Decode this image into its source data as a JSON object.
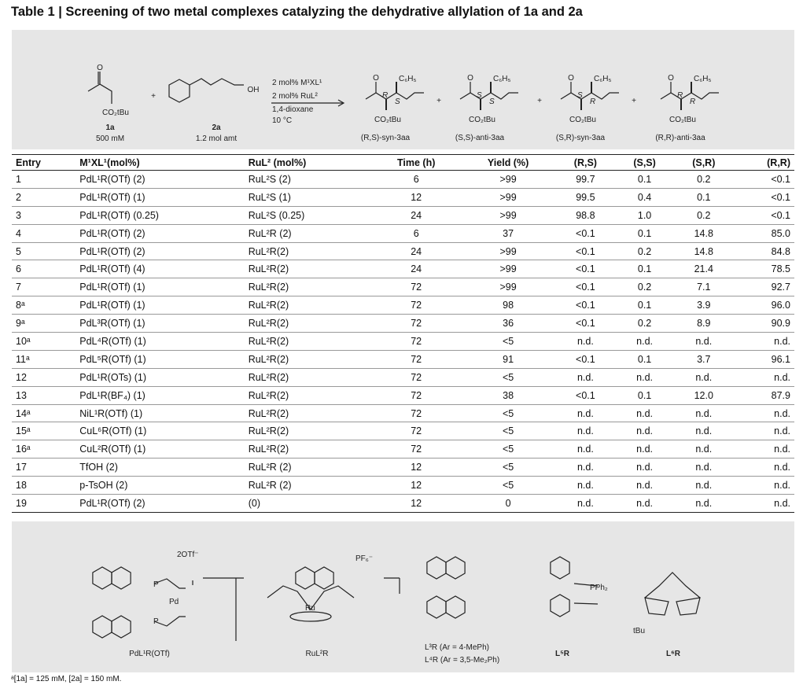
{
  "title": "Table 1 | Screening of two metal complexes catalyzing the dehydrative allylation of 1a and 2a",
  "scheme": {
    "reactants": [
      {
        "label": "1a",
        "amount": "500 mM",
        "group": "CO₂tBu"
      },
      {
        "label": "2a",
        "amount": "1.2 mol amt",
        "group": "OH"
      }
    ],
    "plus": "+",
    "conditions": [
      "2 mol% M¹XL¹",
      "2 mol% RuL²",
      "1,4-dioxane",
      "10 °C"
    ],
    "products": [
      {
        "label": "(R,S)-syn-3aa",
        "top": "C₆H₅",
        "bottom": "CO₂tBu",
        "stereo": [
          "R",
          "S"
        ]
      },
      {
        "label": "(S,S)-anti-3aa",
        "top": "C₆H₅",
        "bottom": "CO₂tBu",
        "stereo": [
          "S",
          "S"
        ]
      },
      {
        "label": "(S,R)-syn-3aa",
        "top": "C₆H₅",
        "bottom": "CO₂tBu",
        "stereo": [
          "S",
          "R"
        ]
      },
      {
        "label": "(R,R)-anti-3aa",
        "top": "C₆H₅",
        "bottom": "CO₂tBu",
        "stereo": [
          "R",
          "R"
        ]
      }
    ]
  },
  "table": {
    "header": [
      "Entry",
      "M¹XL¹(mol%)",
      "RuL² (mol%)",
      "Time (h)",
      "Yield (%)",
      "(R,S)",
      "(S,S)",
      "(S,R)",
      "(R,R)"
    ],
    "rows": [
      [
        "1",
        "PdL¹R(OTf) (2)",
        "RuL²S (2)",
        "6",
        ">99",
        "99.7",
        "0.1",
        "0.2",
        "<0.1"
      ],
      [
        "2",
        "PdL¹R(OTf) (1)",
        "RuL²S (1)",
        "12",
        ">99",
        "99.5",
        "0.4",
        "0.1",
        "<0.1"
      ],
      [
        "3",
        "PdL¹R(OTf) (0.25)",
        "RuL²S (0.25)",
        "24",
        ">99",
        "98.8",
        "1.0",
        "0.2",
        "<0.1"
      ],
      [
        "4",
        "PdL¹R(OTf) (2)",
        "RuL²R (2)",
        "6",
        "37",
        "<0.1",
        "0.1",
        "14.8",
        "85.0"
      ],
      [
        "5",
        "PdL¹R(OTf) (2)",
        "RuL²R(2)",
        "24",
        ">99",
        "<0.1",
        "0.2",
        "14.8",
        "84.8"
      ],
      [
        "6",
        "PdL¹R(OTf) (4)",
        "RuL²R(2)",
        "24",
        ">99",
        "<0.1",
        "0.1",
        "21.4",
        "78.5"
      ],
      [
        "7",
        "PdL¹R(OTf) (1)",
        "RuL²R(2)",
        "72",
        ">99",
        "<0.1",
        "0.2",
        "7.1",
        "92.7"
      ],
      [
        "8ᵃ",
        "PdL¹R(OTf) (1)",
        "RuL²R(2)",
        "72",
        "98",
        "<0.1",
        "0.1",
        "3.9",
        "96.0"
      ],
      [
        "9ᵃ",
        "PdL³R(OTf) (1)",
        "RuL²R(2)",
        "72",
        "36",
        "<0.1",
        "0.2",
        "8.9",
        "90.9"
      ],
      [
        "10ᵃ",
        "PdL⁴R(OTf) (1)",
        "RuL²R(2)",
        "72",
        "<5",
        "n.d.",
        "n.d.",
        "n.d.",
        "n.d."
      ],
      [
        "11ᵃ",
        "PdL⁵R(OTf) (1)",
        "RuL²R(2)",
        "72",
        "91",
        "<0.1",
        "0.1",
        "3.7",
        "96.1"
      ],
      [
        "12",
        "PdL¹R(OTs) (1)",
        "RuL²R(2)",
        "72",
        "<5",
        "n.d.",
        "n.d.",
        "n.d.",
        "n.d."
      ],
      [
        "13",
        "PdL¹R(BF₄) (1)",
        "RuL²R(2)",
        "72",
        "38",
        "<0.1",
        "0.1",
        "12.0",
        "87.9"
      ],
      [
        "14ᵃ",
        "NiL¹R(OTf) (1)",
        "RuL²R(2)",
        "72",
        "<5",
        "n.d.",
        "n.d.",
        "n.d.",
        "n.d."
      ],
      [
        "15ᵃ",
        "CuL⁶R(OTf) (1)",
        "RuL²R(2)",
        "72",
        "<5",
        "n.d.",
        "n.d.",
        "n.d.",
        "n.d."
      ],
      [
        "16ᵃ",
        "CuL²R(OTf) (1)",
        "RuL²R(2)",
        "72",
        "<5",
        "n.d.",
        "n.d.",
        "n.d.",
        "n.d."
      ],
      [
        "17",
        "TfOH (2)",
        "RuL²R (2)",
        "12",
        "<5",
        "n.d.",
        "n.d.",
        "n.d.",
        "n.d."
      ],
      [
        "18",
        "p-TsOH (2)",
        "RuL²R (2)",
        "12",
        "<5",
        "n.d.",
        "n.d.",
        "n.d.",
        "n.d."
      ],
      [
        "19",
        "PdL¹R(OTf) (2)",
        "(0)",
        "12",
        "0",
        "n.d.",
        "n.d.",
        "n.d.",
        "n.d."
      ]
    ]
  },
  "structures": [
    {
      "label": "PdL¹R(OTf)",
      "note": "2OTf⁻"
    },
    {
      "label": "RuL²R",
      "note": "PF₆⁻"
    },
    {
      "label": "L³R (Ar = 4-MePh)",
      "note": "L⁴R (Ar = 3,5-Me₂Ph)"
    },
    {
      "label": "L⁵R",
      "note": "PPh₂"
    },
    {
      "label": "L⁶R",
      "note": "tBu"
    }
  ],
  "footnote": "ᵃ[1a] = 125 mM, [2a] = 150 mM."
}
